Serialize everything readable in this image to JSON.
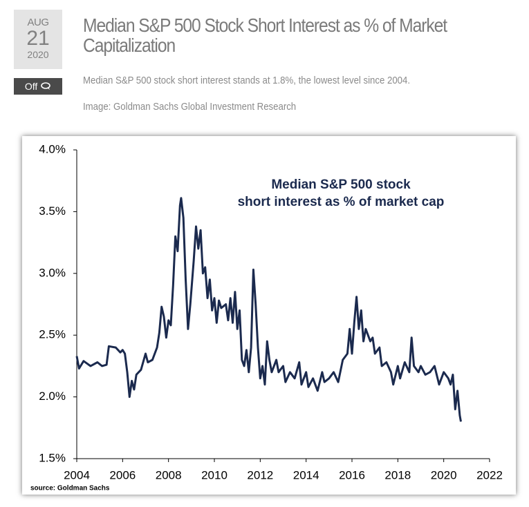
{
  "header": {
    "month": "AUG",
    "day": "21",
    "year": "2020",
    "comments": "Off",
    "title": "Median S&P 500 Stock Short Interest as % of Market Capitalization",
    "summary": "Median S&P 500 stock short interest stands at 1.8%, the lowest level since 2004.",
    "credit": "Image: Goldman Sachs Global Investment Research"
  },
  "chart_data": {
    "type": "line",
    "annotation": [
      "Median  S&P 500 stock",
      "short interest as % of market cap"
    ],
    "source": "source: Goldman Sachs",
    "color": "#1b2a4e",
    "xlim": [
      2004,
      2022
    ],
    "xticks": [
      2004,
      2006,
      2008,
      2010,
      2012,
      2014,
      2016,
      2018,
      2020,
      2022
    ],
    "ylim": [
      1.5,
      4.0
    ],
    "yticks": [
      {
        "value": 1.5,
        "label": "1.5%"
      },
      {
        "value": 2.0,
        "label": "2.0%"
      },
      {
        "value": 2.5,
        "label": "2.5%"
      },
      {
        "value": 3.0,
        "label": "3.0%"
      },
      {
        "value": 3.5,
        "label": "3.5%"
      },
      {
        "value": 4.0,
        "label": "4.0%"
      }
    ],
    "x": [
      2004.0,
      2004.1,
      2004.3,
      2004.6,
      2004.9,
      2005.1,
      2005.3,
      2005.4,
      2005.7,
      2005.9,
      2006.0,
      2006.1,
      2006.2,
      2006.3,
      2006.4,
      2006.5,
      2006.6,
      2006.8,
      2007.0,
      2007.1,
      2007.3,
      2007.5,
      2007.6,
      2007.7,
      2007.8,
      2007.9,
      2008.0,
      2008.1,
      2008.2,
      2008.3,
      2008.4,
      2008.5,
      2008.55,
      2008.65,
      2008.75,
      2008.85,
      2008.95,
      2009.1,
      2009.2,
      2009.3,
      2009.4,
      2009.5,
      2009.6,
      2009.7,
      2009.8,
      2009.9,
      2010.0,
      2010.1,
      2010.2,
      2010.3,
      2010.5,
      2010.6,
      2010.7,
      2010.8,
      2010.9,
      2011.0,
      2011.1,
      2011.2,
      2011.3,
      2011.4,
      2011.5,
      2011.6,
      2011.7,
      2011.8,
      2011.9,
      2012.0,
      2012.1,
      2012.2,
      2012.3,
      2012.4,
      2012.5,
      2012.7,
      2012.8,
      2013.0,
      2013.1,
      2013.3,
      2013.5,
      2013.7,
      2013.8,
      2014.0,
      2014.1,
      2014.3,
      2014.5,
      2014.7,
      2014.8,
      2015.0,
      2015.2,
      2015.4,
      2015.6,
      2015.8,
      2015.9,
      2016.0,
      2016.1,
      2016.2,
      2016.3,
      2016.4,
      2016.5,
      2016.6,
      2016.8,
      2016.9,
      2017.0,
      2017.2,
      2017.3,
      2017.5,
      2017.7,
      2017.8,
      2018.0,
      2018.1,
      2018.3,
      2018.5,
      2018.6,
      2018.7,
      2018.9,
      2019.0,
      2019.2,
      2019.4,
      2019.6,
      2019.8,
      2020.0,
      2020.2,
      2020.3,
      2020.4,
      2020.5,
      2020.6,
      2020.7,
      2020.75
    ],
    "values": [
      2.33,
      2.23,
      2.29,
      2.25,
      2.28,
      2.25,
      2.26,
      2.41,
      2.4,
      2.36,
      2.38,
      2.35,
      2.2,
      2.0,
      2.13,
      2.06,
      2.18,
      2.22,
      2.35,
      2.28,
      2.3,
      2.4,
      2.52,
      2.73,
      2.65,
      2.48,
      2.62,
      2.58,
      2.9,
      3.3,
      3.18,
      3.55,
      3.61,
      3.45,
      2.95,
      2.55,
      2.75,
      3.1,
      3.38,
      3.2,
      3.35,
      3.0,
      3.05,
      2.8,
      2.95,
      2.7,
      2.8,
      2.6,
      2.78,
      2.72,
      2.75,
      2.62,
      2.8,
      2.6,
      2.85,
      2.55,
      2.7,
      2.3,
      2.25,
      2.38,
      2.2,
      2.4,
      3.03,
      2.75,
      2.4,
      2.15,
      2.25,
      2.1,
      2.45,
      2.3,
      2.2,
      2.3,
      2.2,
      2.25,
      2.12,
      2.2,
      2.15,
      2.28,
      2.1,
      2.2,
      2.08,
      2.15,
      2.05,
      2.2,
      2.12,
      2.15,
      2.2,
      2.12,
      2.3,
      2.35,
      2.55,
      2.35,
      2.6,
      2.81,
      2.55,
      2.7,
      2.45,
      2.55,
      2.45,
      2.48,
      2.35,
      2.4,
      2.25,
      2.28,
      2.2,
      2.1,
      2.25,
      2.15,
      2.28,
      2.2,
      2.48,
      2.25,
      2.2,
      2.25,
      2.18,
      2.2,
      2.25,
      2.1,
      2.2,
      2.15,
      2.1,
      2.18,
      1.9,
      2.05,
      1.85,
      1.8
    ]
  }
}
